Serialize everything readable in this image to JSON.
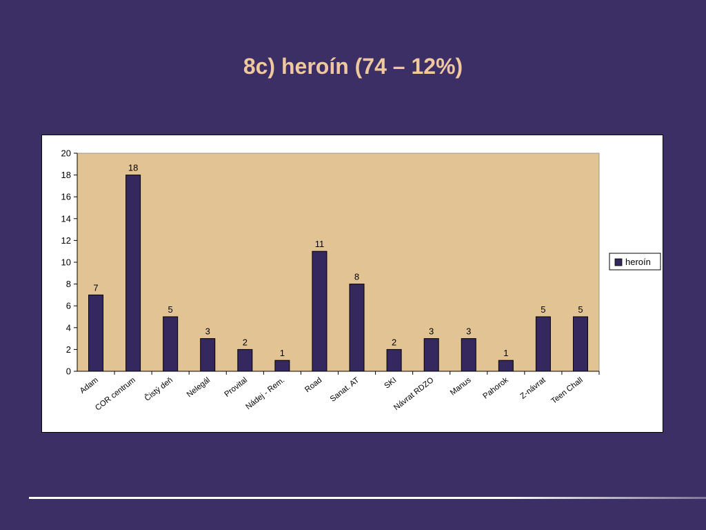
{
  "slide": {
    "title": "8c)  heroín (74 – 12%)"
  },
  "colors": {
    "background": "#3b2f65",
    "title": "#f0c8a0",
    "plot_area": "#e2c394",
    "bar": "#34285e"
  },
  "chart_data": {
    "type": "bar",
    "title": "",
    "xlabel": "",
    "ylabel": "",
    "categories": [
      "Adam",
      "COR centrum",
      "Čistý deň",
      "Nelegál",
      "Provital",
      "Nádej - Rem.",
      "Road",
      "Sanat. AT",
      "SKI",
      "Návrat RDZO",
      "Manus",
      "Pahorok",
      "Z-návrat",
      "Teen Chall"
    ],
    "series": [
      {
        "name": "heroín",
        "values": [
          7,
          18,
          5,
          3,
          2,
          1,
          11,
          8,
          2,
          3,
          3,
          1,
          5,
          5
        ]
      }
    ],
    "ylim": [
      0,
      20
    ],
    "yticks": [
      0,
      2,
      4,
      6,
      8,
      10,
      12,
      14,
      16,
      18,
      20
    ],
    "data_labels": true,
    "grid": false,
    "legend": "right"
  }
}
